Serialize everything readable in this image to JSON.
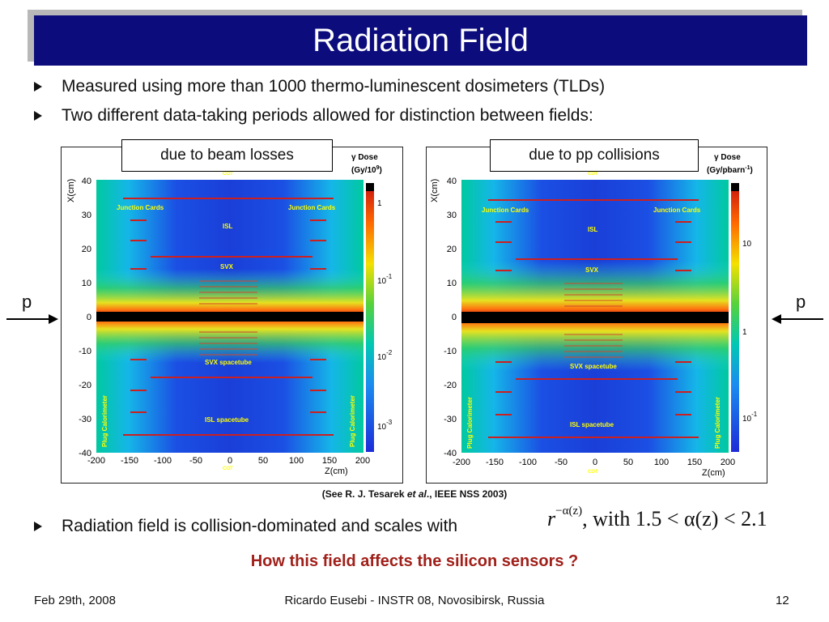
{
  "title": "Radiation Field",
  "bullets": [
    "Measured using more than 1000 thermo-luminescent dosimeters (TLDs)",
    "Two different data-taking periods allowed for distinction between fields:",
    "Radiation field is collision-dominated and scales with"
  ],
  "panels": [
    {
      "label": "due to beam losses",
      "legend_title_1": "γ Dose",
      "legend_title_2": "(Gy/10",
      "legend_title_sup": "9",
      "legend_title_end": ")",
      "legend_ticks": [
        {
          "base": "1",
          "exp": ""
        },
        {
          "base": "10",
          "exp": "-1"
        },
        {
          "base": "10",
          "exp": "-2"
        },
        {
          "base": "10",
          "exp": "-3"
        }
      ]
    },
    {
      "label": "due to pp collisions",
      "legend_title_1": "γ Dose",
      "legend_title_2": "(Gy/pbarn",
      "legend_title_sup": "-1",
      "legend_title_end": ")",
      "legend_ticks": [
        {
          "base": "10",
          "exp": ""
        },
        {
          "base": "1",
          "exp": ""
        },
        {
          "base": "10",
          "exp": "-1"
        }
      ]
    }
  ],
  "plot": {
    "ylabel": "X(cm)",
    "xlabel": "Z(cm)",
    "yticks": [
      "40",
      "30",
      "20",
      "10",
      "0",
      "-10",
      "-20",
      "-30",
      "-40"
    ],
    "xticks": [
      "-200",
      "-150",
      "-100",
      "-50",
      "0",
      "50",
      "100",
      "150",
      "200"
    ],
    "annotations": {
      "junction_left": "Junction Cards",
      "junction_right": "Junction Cards",
      "isl": "ISL",
      "svx": "SVX",
      "svx_spacetube": "SVX spacetube",
      "isl_spacetube": "ISL spacetube",
      "plug_calorimeter": "Plug Calorimeter",
      "cot": "COT"
    }
  },
  "beam_label": "p",
  "citation_prefix": "(See R. J. Tesarek ",
  "citation_italic": "et al",
  "citation_suffix": "., IEEE NSS 2003)",
  "formula": {
    "base": "r",
    "exponent": "−α(z)",
    "tail": ", with 1.5 < α(z) < 2.1"
  },
  "headline": "How this field affects the silicon sensors ?",
  "footer": {
    "date": "Feb 29th, 2008",
    "center": "Ricardo Eusebi - INSTR 08, Novosibirsk, Russia",
    "page": "12"
  },
  "colors": {
    "title_bar": "#0c0c7d",
    "headline": "#a0201a",
    "annotation": "#ffff00",
    "detector_lines": "#cc1f1f"
  }
}
